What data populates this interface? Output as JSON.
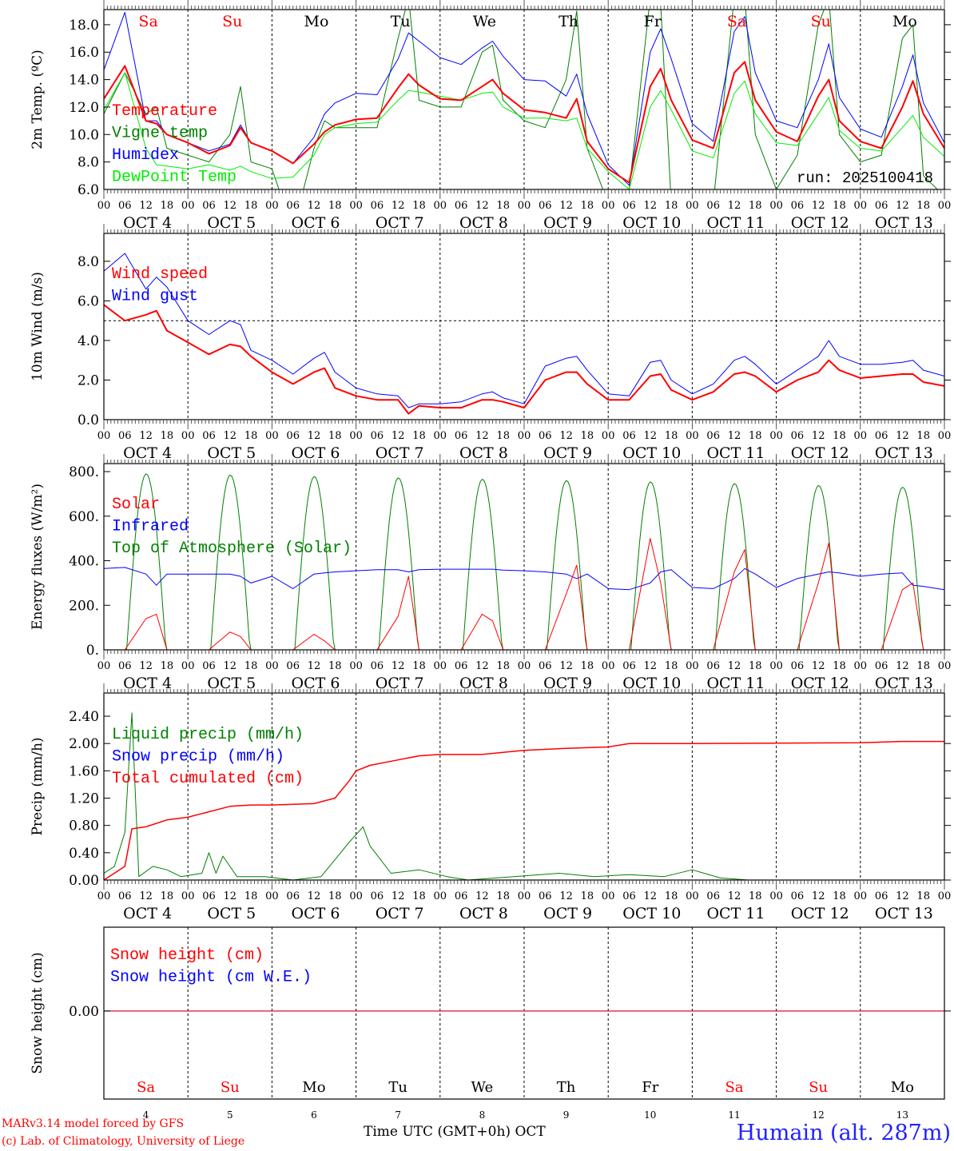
{
  "chart_data": [
    {
      "type": "line",
      "id": "temp",
      "ylabel": "2m Temp. (ºC)",
      "ylim": [
        6.0,
        19.1
      ],
      "yticks": [
        "6.0",
        "8.0",
        "10.0",
        "12.0",
        "14.0",
        "16.0",
        "18.0"
      ],
      "legend": [
        {
          "name": "Temperature",
          "color": "#ff0000"
        },
        {
          "name": "Vigne temp",
          "color": "#008000"
        },
        {
          "name": "Humidex",
          "color": "#0000ff"
        },
        {
          "name": "DewPoint Temp",
          "color": "#00ee00"
        }
      ],
      "annotation": "run: 2025100418",
      "series": [
        {
          "name": "Vigne temp",
          "color": "#008000",
          "width": 1,
          "values": [
            11.5,
            14.5,
            11.5,
            12.0,
            9.0,
            8.5,
            8.0,
            10.0,
            13.5,
            8.0,
            7.5,
            3.0,
            9.0,
            11.0,
            10.5,
            10.5,
            10.5,
            17.0,
            20.0,
            12.5,
            12.0,
            12.0,
            16.0,
            16.5,
            12.5,
            11.0,
            10.5,
            14.0,
            19.0,
            9.0,
            5.0,
            6.0,
            20.0,
            19.5,
            5.0,
            3.0,
            5.0,
            20.0,
            20.0,
            10.0,
            6.0,
            8.5,
            18.0,
            20.0,
            10.0,
            8.0,
            8.5,
            17.0,
            18.0,
            7.0,
            5.5
          ]
        },
        {
          "name": "DewPoint Temp",
          "color": "#00ee00",
          "width": 1,
          "values": [
            11.8,
            14.5,
            9.0,
            7.8,
            7.7,
            7.5,
            7.8,
            7.4,
            7.7,
            7.3,
            6.8,
            6.9,
            8.5,
            10.0,
            10.5,
            10.8,
            10.9,
            12.5,
            13.2,
            13.1,
            12.8,
            12.5,
            13.0,
            13.1,
            12.0,
            11.2,
            11.2,
            11.0,
            11.2,
            9.0,
            7.3,
            6.0,
            12.0,
            13.2,
            11.8,
            8.8,
            8.3,
            13.0,
            13.9,
            11.5,
            9.4,
            9.2,
            11.5,
            12.7,
            10.3,
            9.0,
            8.8,
            10.5,
            11.4,
            9.8,
            8.4
          ]
        },
        {
          "name": "Humidex",
          "color": "#0000ff",
          "width": 1,
          "values": [
            14.7,
            18.9,
            11.0,
            11.0,
            10.0,
            9.4,
            8.8,
            9.3,
            10.7,
            9.4,
            8.8,
            7.9,
            9.8,
            11.5,
            12.3,
            13.0,
            12.9,
            15.5,
            17.4,
            16.8,
            15.6,
            15.1,
            16.3,
            16.8,
            15.7,
            14.0,
            13.9,
            12.8,
            14.4,
            11.5,
            7.8,
            6.3,
            16.0,
            17.7,
            15.5,
            10.8,
            9.5,
            17.5,
            18.6,
            14.5,
            11.0,
            10.5,
            14.0,
            16.6,
            12.7,
            10.4,
            9.8,
            13.5,
            15.8,
            12.3,
            9.4
          ]
        },
        {
          "name": "Temperature",
          "color": "#ff0000",
          "width": 2,
          "values": [
            12.6,
            15.0,
            11.0,
            10.8,
            10.0,
            9.4,
            8.6,
            9.2,
            10.5,
            9.4,
            8.8,
            7.9,
            9.3,
            10.2,
            10.7,
            11.1,
            11.2,
            13.4,
            14.4,
            13.6,
            12.6,
            12.5,
            13.5,
            14.0,
            13.0,
            11.8,
            11.6,
            11.2,
            12.6,
            9.5,
            7.5,
            6.5,
            13.5,
            14.8,
            12.5,
            9.6,
            9.0,
            14.5,
            15.3,
            12.5,
            10.2,
            9.5,
            12.8,
            14.0,
            11.0,
            9.5,
            9.0,
            12.0,
            13.9,
            11.5,
            9.0
          ]
        }
      ]
    },
    {
      "type": "line",
      "id": "wind",
      "ylabel": "10m Wind (m/s)",
      "ylim": [
        0.0,
        9.41
      ],
      "yticks": [
        "0.0",
        "2.0",
        "4.0",
        "6.0",
        "8.0"
      ],
      "reference_line": 5.0,
      "legend": [
        {
          "name": "Wind speed",
          "color": "#ff0000"
        },
        {
          "name": "Wind gust",
          "color": "#0000ff"
        }
      ],
      "series": [
        {
          "name": "Wind gust",
          "color": "#0000ff",
          "width": 1,
          "values": [
            7.5,
            8.4,
            6.6,
            7.2,
            6.7,
            5.0,
            4.3,
            5.0,
            4.8,
            3.5,
            3.0,
            2.3,
            3.1,
            3.4,
            2.4,
            1.6,
            1.3,
            1.2,
            0.6,
            0.8,
            0.8,
            0.9,
            1.3,
            1.4,
            1.1,
            0.8,
            2.7,
            3.1,
            3.2,
            2.5,
            1.3,
            1.2,
            2.9,
            3.0,
            2.0,
            1.3,
            1.8,
            3.0,
            3.2,
            2.8,
            1.8,
            2.5,
            3.2,
            4.0,
            3.2,
            2.8,
            2.8,
            2.9,
            3.0,
            2.5,
            2.2
          ]
        },
        {
          "name": "Wind speed",
          "color": "#ff0000",
          "width": 2,
          "values": [
            5.8,
            5.0,
            5.3,
            5.5,
            4.5,
            3.9,
            3.3,
            3.8,
            3.7,
            3.2,
            2.4,
            1.8,
            2.4,
            2.6,
            1.6,
            1.2,
            1.0,
            1.0,
            0.3,
            0.7,
            0.6,
            0.6,
            1.0,
            1.0,
            0.9,
            0.6,
            2.0,
            2.4,
            2.4,
            1.8,
            1.0,
            1.0,
            2.2,
            2.3,
            1.5,
            1.0,
            1.4,
            2.3,
            2.4,
            2.2,
            1.4,
            2.0,
            2.4,
            3.0,
            2.5,
            2.1,
            2.2,
            2.3,
            2.3,
            1.9,
            1.7
          ]
        }
      ]
    },
    {
      "type": "line",
      "id": "energy",
      "ylabel": "Energy fluxes (W/m²)",
      "ylim": [
        0,
        836
      ],
      "yticks": [
        "0.",
        "200.",
        "400.",
        "600.",
        "800."
      ],
      "legend": [
        {
          "name": "Solar",
          "color": "#ff0000"
        },
        {
          "name": "Infrared",
          "color": "#0000ff"
        },
        {
          "name": "Top of Atmosphere (Solar)",
          "color": "#008000"
        }
      ],
      "toa": {
        "name": "Top of Atmosphere (Solar)",
        "color": "#008000",
        "daily_peak": [
          790,
          785,
          778,
          772,
          766,
          760,
          754,
          746,
          738,
          730
        ],
        "sunrise_hour": 6.5,
        "sunset_hour": 17.7
      },
      "series": [
        {
          "name": "Infrared",
          "color": "#0000ff",
          "width": 1,
          "values": [
            365,
            370,
            340,
            290,
            340,
            340,
            340,
            340,
            330,
            300,
            330,
            275,
            340,
            345,
            350,
            355,
            360,
            360,
            350,
            360,
            362,
            362,
            362,
            362,
            358,
            355,
            350,
            340,
            320,
            340,
            275,
            270,
            300,
            350,
            360,
            280,
            275,
            320,
            365,
            340,
            280,
            320,
            340,
            350,
            345,
            330,
            340,
            345,
            290,
            285,
            270
          ]
        },
        {
          "name": "Solar",
          "color": "#ff0000",
          "width": 1,
          "values": [
            0,
            0,
            140,
            160,
            0,
            0,
            0,
            80,
            60,
            0,
            0,
            0,
            70,
            40,
            0,
            0,
            0,
            150,
            330,
            0,
            0,
            0,
            160,
            130,
            0,
            0,
            0,
            250,
            380,
            0,
            0,
            0,
            500,
            300,
            0,
            0,
            0,
            350,
            450,
            0,
            0,
            0,
            300,
            480,
            0,
            0,
            0,
            270,
            300,
            0,
            0
          ]
        }
      ]
    },
    {
      "type": "line",
      "id": "precip",
      "ylabel": "Precip (mm/h)",
      "ylim": [
        0.0,
        2.74
      ],
      "yticks": [
        "0.00",
        "0.40",
        "0.80",
        "1.20",
        "1.60",
        "2.00",
        "2.40"
      ],
      "legend": [
        {
          "name": "Liquid precip (mm/h)",
          "color": "#008000"
        },
        {
          "name": "Snow precip (mm/h)",
          "color": "#0000ff"
        },
        {
          "name": "Total cumulated (cm)",
          "color": "#ff0000"
        }
      ],
      "point_series": [
        {
          "name": "Snow precip (mm/h)",
          "color": "#0000ff",
          "width": 1,
          "points": [
            [
              0,
              0
            ],
            [
              240,
              0
            ]
          ]
        },
        {
          "name": "Liquid precip (mm/h)",
          "color": "#008000",
          "width": 1,
          "points": [
            [
              0,
              0.1
            ],
            [
              3,
              0.2
            ],
            [
              6,
              0.7
            ],
            [
              8,
              2.45
            ],
            [
              10,
              0.05
            ],
            [
              14,
              0.2
            ],
            [
              18,
              0.15
            ],
            [
              22,
              0.05
            ],
            [
              28,
              0.1
            ],
            [
              30,
              0.4
            ],
            [
              32,
              0.1
            ],
            [
              34,
              0.35
            ],
            [
              38,
              0.05
            ],
            [
              46,
              0.05
            ],
            [
              54,
              0.0
            ],
            [
              62,
              0.05
            ],
            [
              66,
              0.3
            ],
            [
              70,
              0.55
            ],
            [
              74,
              0.78
            ],
            [
              76,
              0.5
            ],
            [
              82,
              0.1
            ],
            [
              90,
              0.15
            ],
            [
              98,
              0.05
            ],
            [
              104,
              0
            ],
            [
              130,
              0.1
            ],
            [
              140,
              0.05
            ],
            [
              150,
              0.08
            ],
            [
              160,
              0.05
            ],
            [
              168,
              0.15
            ],
            [
              176,
              0.03
            ],
            [
              184,
              0
            ],
            [
              240,
              0
            ]
          ]
        },
        {
          "name": "Total cumulated (cm)",
          "color": "#ff0000",
          "width": 1.5,
          "points": [
            [
              0,
              0
            ],
            [
              6,
              0.2
            ],
            [
              8,
              0.75
            ],
            [
              12,
              0.78
            ],
            [
              18,
              0.88
            ],
            [
              24,
              0.92
            ],
            [
              30,
              1.0
            ],
            [
              36,
              1.08
            ],
            [
              42,
              1.1
            ],
            [
              48,
              1.1
            ],
            [
              60,
              1.12
            ],
            [
              66,
              1.2
            ],
            [
              70,
              1.45
            ],
            [
              72,
              1.6
            ],
            [
              76,
              1.68
            ],
            [
              84,
              1.76
            ],
            [
              90,
              1.82
            ],
            [
              96,
              1.84
            ],
            [
              108,
              1.84
            ],
            [
              120,
              1.9
            ],
            [
              132,
              1.93
            ],
            [
              144,
              1.95
            ],
            [
              150,
              2.0
            ],
            [
              168,
              2.0
            ],
            [
              216,
              2.01
            ],
            [
              228,
              2.03
            ],
            [
              240,
              2.03
            ]
          ]
        }
      ]
    },
    {
      "type": "line",
      "id": "snow",
      "ylabel": "Snow height (cm)",
      "ylim": [
        -1.05,
        1.0
      ],
      "yticks": [
        "0.00"
      ],
      "legend": [
        {
          "name": "Snow height (cm)",
          "color": "#ff0000"
        },
        {
          "name": "Snow height (cm W.E.)",
          "color": "#0000ff"
        }
      ],
      "point_series": [
        {
          "name": "Snow height (cm W.E.)",
          "color": "#0000ff",
          "width": 1,
          "points": [
            [
              0,
              0
            ],
            [
              240,
              0
            ]
          ]
        },
        {
          "name": "Snow height (cm)",
          "color": "#ff0000",
          "width": 1,
          "points": [
            [
              0,
              0
            ],
            [
              240,
              0
            ]
          ]
        }
      ]
    }
  ],
  "hours_x": [
    0,
    6,
    12,
    15,
    18,
    24,
    30,
    36,
    39,
    42,
    48,
    54,
    60,
    63,
    66,
    72,
    78,
    84,
    87,
    90,
    96,
    102,
    108,
    111,
    114,
    120,
    126,
    132,
    135,
    138,
    144,
    150,
    156,
    159,
    162,
    168,
    174,
    180,
    183,
    186,
    192,
    198,
    204,
    207,
    210,
    216,
    222,
    228,
    231,
    234,
    240
  ],
  "x_range_hours": [
    0,
    240
  ],
  "days": [
    {
      "name": "Sa",
      "date": "4",
      "weekend": true
    },
    {
      "name": "Su",
      "date": "5",
      "weekend": true
    },
    {
      "name": "Mo",
      "date": "6",
      "weekend": false
    },
    {
      "name": "Tu",
      "date": "7",
      "weekend": false
    },
    {
      "name": "We",
      "date": "8",
      "weekend": false
    },
    {
      "name": "Th",
      "date": "9",
      "weekend": false
    },
    {
      "name": "Fr",
      "date": "10",
      "weekend": false
    },
    {
      "name": "Sa",
      "date": "11",
      "weekend": true
    },
    {
      "name": "Su",
      "date": "12",
      "weekend": true
    },
    {
      "name": "Mo",
      "date": "13",
      "weekend": false
    }
  ],
  "hour_labels": [
    "00",
    "06",
    "12",
    "18"
  ],
  "month_label": "OCT",
  "footer": {
    "model": "MARv3.14 model forced by GFS",
    "credit": "(c) Lab. of Climatology, University of Liege",
    "xlabel": "Time UTC (GMT+0h) OCT",
    "station": "Humain (alt. 287m)"
  },
  "colors": {
    "weekend": "#ff0000",
    "weekday": "#000000",
    "station": "#2222ff"
  }
}
